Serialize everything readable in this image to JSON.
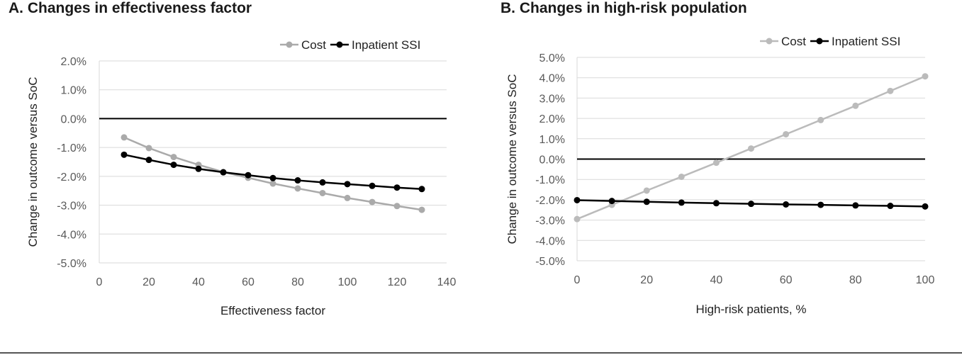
{
  "chart_data": [
    {
      "id": "A",
      "type": "line",
      "title": "A. Changes in effectiveness factor",
      "xlabel": "Effectiveness factor",
      "ylabel": "Change in outcome versus SoC",
      "xlim": [
        0,
        140
      ],
      "ylim": [
        -5.0,
        2.0
      ],
      "xticks": [
        0,
        20,
        40,
        60,
        80,
        100,
        120,
        140
      ],
      "yticks": [
        2.0,
        1.0,
        0.0,
        -1.0,
        -2.0,
        -3.0,
        -4.0,
        -5.0
      ],
      "ytick_labels": [
        "2.0%",
        "1.0%",
        "0.0%",
        "-1.0%",
        "-2.0%",
        "-3.0%",
        "-4.0%",
        "-5.0%"
      ],
      "grid": "horizontal",
      "zero_line": 0,
      "legend": "top-right",
      "x": [
        10,
        20,
        30,
        40,
        50,
        60,
        70,
        80,
        90,
        100,
        110,
        120,
        130
      ],
      "series": [
        {
          "name": "Cost",
          "color": "#aaaaaa",
          "values": [
            -0.65,
            -1.02,
            -1.33,
            -1.6,
            -1.85,
            -2.05,
            -2.25,
            -2.42,
            -2.58,
            -2.75,
            -2.89,
            -3.03,
            -3.16
          ]
        },
        {
          "name": "Inpatient SSI",
          "color": "#000000",
          "values": [
            -1.25,
            -1.43,
            -1.6,
            -1.74,
            -1.86,
            -1.96,
            -2.06,
            -2.14,
            -2.21,
            -2.27,
            -2.33,
            -2.39,
            -2.44
          ]
        }
      ]
    },
    {
      "id": "B",
      "type": "line",
      "title": "B. Changes in high-risk population",
      "xlabel": "High-risk patients, %",
      "ylabel": "Change in outcome versus SoC",
      "xlim": [
        0,
        100
      ],
      "ylim": [
        -5.0,
        5.0
      ],
      "xticks": [
        0,
        20,
        40,
        60,
        80,
        100
      ],
      "yticks": [
        5.0,
        4.0,
        3.0,
        2.0,
        1.0,
        0.0,
        -1.0,
        -2.0,
        -3.0,
        -4.0,
        -5.0
      ],
      "ytick_labels": [
        "5.0%",
        "4.0%",
        "3.0%",
        "2.0%",
        "1.0%",
        "0.0%",
        "-1.0%",
        "-2.0%",
        "-3.0%",
        "-4.0%",
        "-5.0%"
      ],
      "grid": "horizontal",
      "zero_line": 0,
      "legend": "top-right",
      "x": [
        0,
        10,
        20,
        30,
        40,
        50,
        60,
        70,
        80,
        90,
        100
      ],
      "series": [
        {
          "name": "Cost",
          "color": "#bbbbbb",
          "values": [
            -2.95,
            -2.25,
            -1.55,
            -0.87,
            -0.18,
            0.52,
            1.22,
            1.92,
            2.62,
            3.35,
            4.07
          ]
        },
        {
          "name": "Inpatient SSI",
          "color": "#000000",
          "values": [
            -2.02,
            -2.06,
            -2.1,
            -2.14,
            -2.17,
            -2.2,
            -2.23,
            -2.25,
            -2.28,
            -2.3,
            -2.33
          ]
        }
      ]
    }
  ]
}
